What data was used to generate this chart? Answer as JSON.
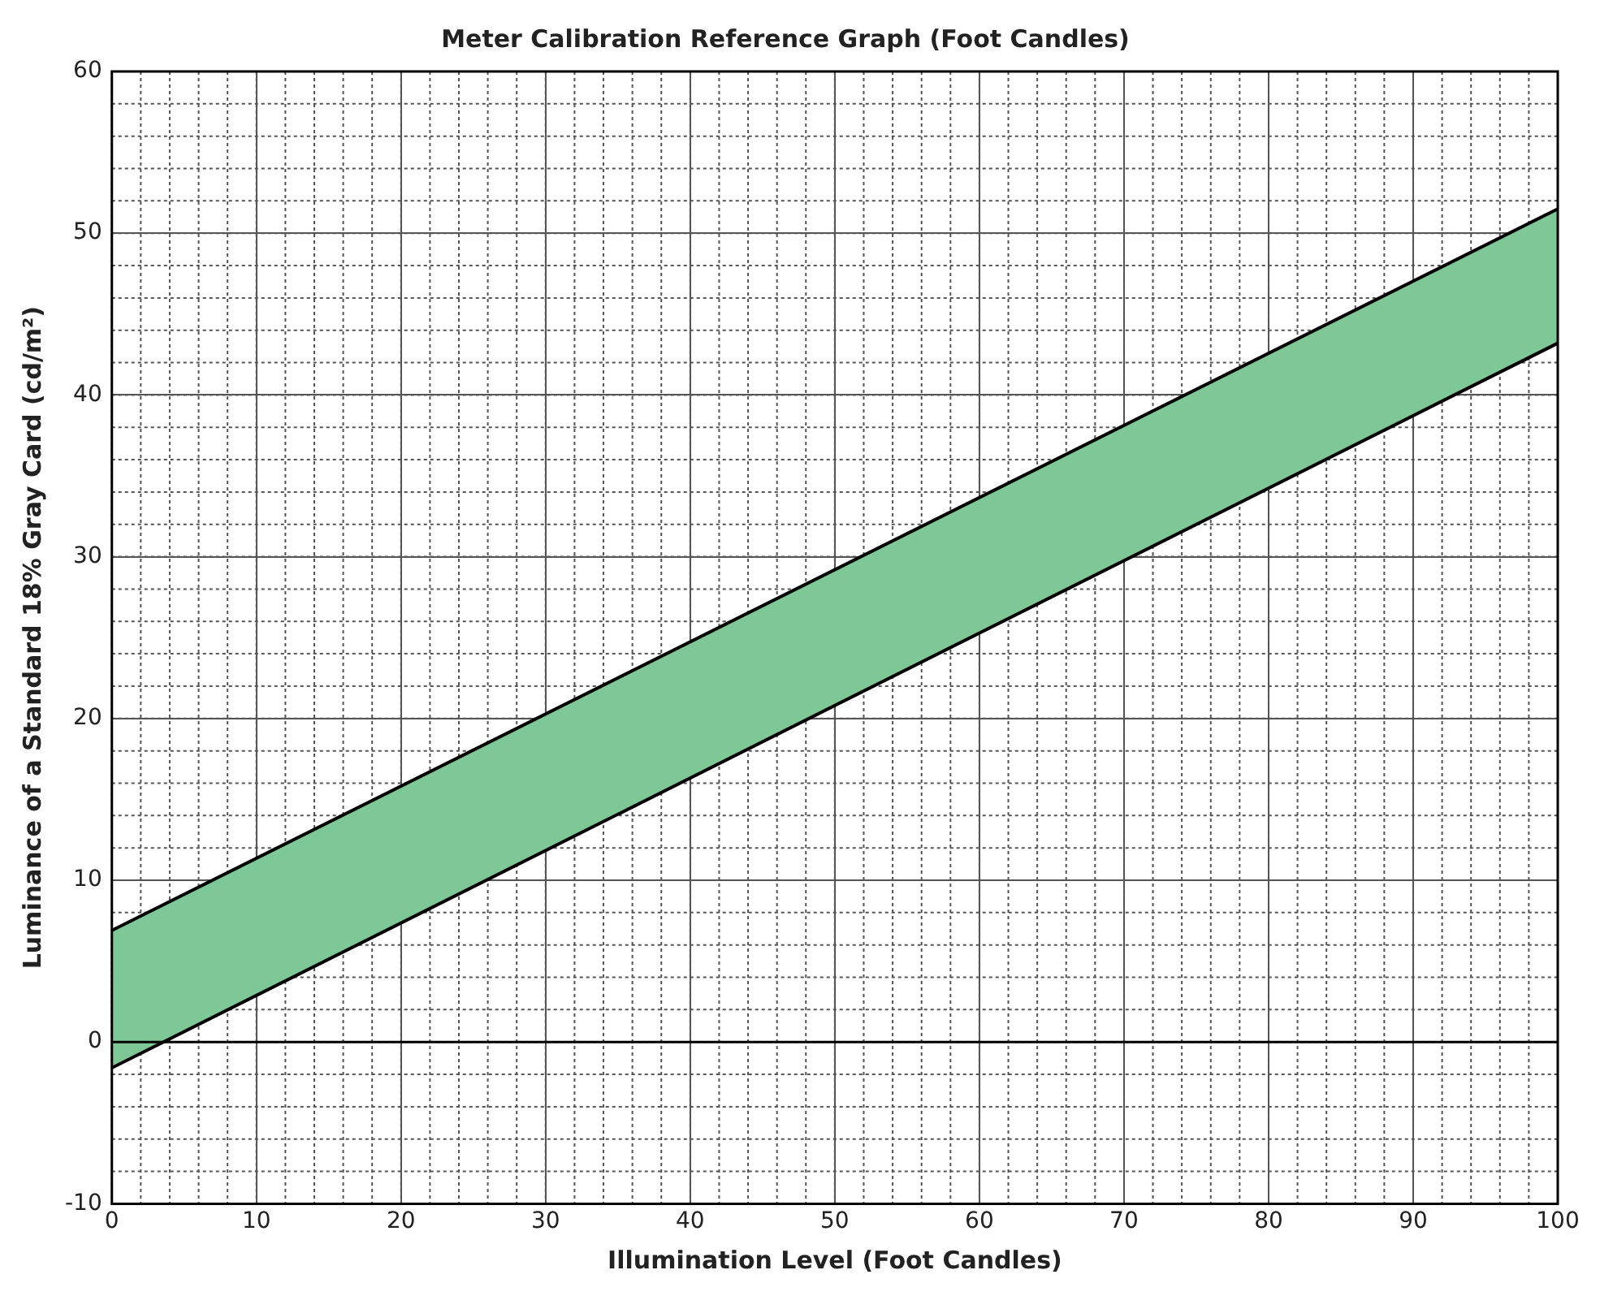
{
  "chart_data": {
    "type": "line",
    "title": "Meter Calibration Reference Graph (Foot Candles)",
    "xlabel": "Illumination Level (Foot Candles)",
    "ylabel": "Luminance of a Standard 18% Gray Card (cd/m²)",
    "x": [
      0,
      100
    ],
    "series": [
      {
        "color": "#000000",
        "values": [
          6.9,
          51.5
        ],
        "lower": [
          -1.6,
          43.2
        ],
        "upper": [
          6.9,
          51.5
        ]
      },
      {
        "color": "#000000",
        "values": [
          -1.6,
          43.2
        ]
      }
    ],
    "xlim": [
      0,
      100
    ],
    "xticks": [
      0,
      10,
      20,
      30,
      40,
      50,
      60,
      70,
      80,
      90,
      100
    ],
    "ylim": [
      -10,
      60
    ],
    "yticks": [
      -10,
      0,
      10,
      20,
      30,
      40,
      50,
      60
    ],
    "ref_lines": [
      {
        "axis": "y",
        "value": 0,
        "color": "#000000"
      }
    ],
    "grid": true,
    "legend": false,
    "marker": "none",
    "line_style": "solid"
  }
}
